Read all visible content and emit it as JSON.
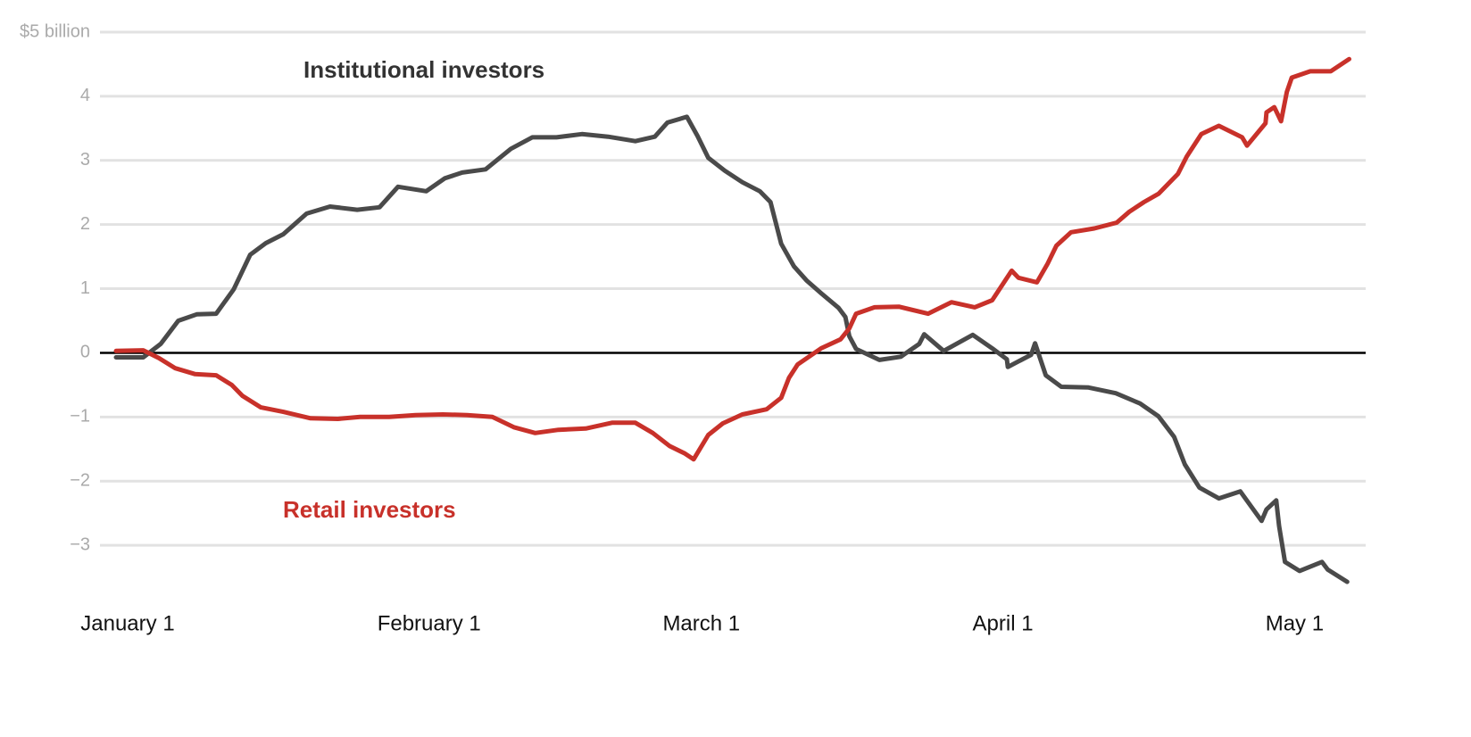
{
  "chart_data": {
    "type": "line",
    "xlim": [
      -1.65,
      128.5
    ],
    "xticks": [
      {
        "value": 0,
        "label": "January 1"
      },
      {
        "value": 31,
        "label": "February 1"
      },
      {
        "value": 59,
        "label": "March 1"
      },
      {
        "value": 90,
        "label": "April 1"
      },
      {
        "value": 120,
        "label": "May 1"
      }
    ],
    "ylim": [
      -4,
      5
    ],
    "yticks": [
      {
        "value": 5,
        "label": "$5 billion"
      },
      4,
      3,
      2,
      1,
      0,
      {
        "value": -1,
        "label": "−1"
      },
      {
        "value": -2,
        "label": "−2"
      },
      {
        "value": -3,
        "label": "−3"
      }
    ],
    "grid": true,
    "series": [
      {
        "name": "Institutional investors",
        "color": "#4a4a4a",
        "x": [
          0,
          2.8,
          4.6,
          6.4,
          8.3,
          10.3,
          12.1,
          13.8,
          15.4,
          17.2,
          19.6,
          22.0,
          24.8,
          27.1,
          29.0,
          31.9,
          33.8,
          35.6,
          38.0,
          40.6,
          42.8,
          45.3,
          47.9,
          50.6,
          53.4,
          55.4,
          56.7,
          58.7,
          59.8,
          60.9,
          62.6,
          64.4,
          66.2,
          67.3,
          68.4,
          69.7,
          71.0,
          72.5,
          74.3,
          75.0,
          75.4,
          76.1,
          78.5,
          80.7,
          82.6,
          83.1,
          85.1,
          88.1,
          90.1,
          91.6,
          91.7,
          94.1,
          94.5,
          95.6,
          97.2,
          100.0,
          102.8,
          105.3,
          107.2,
          108.8,
          109.9,
          111.4,
          113.4,
          115.6,
          117.8,
          118.3,
          119.3,
          119.6,
          120.2,
          121.7,
          124.0,
          124.6,
          126.6
        ],
        "values": [
          -0.07,
          -0.07,
          0.14,
          0.5,
          0.6,
          0.61,
          0.99,
          1.53,
          1.71,
          1.85,
          2.17,
          2.28,
          2.23,
          2.27,
          2.59,
          2.52,
          2.72,
          2.81,
          2.86,
          3.18,
          3.36,
          3.36,
          3.41,
          3.37,
          3.3,
          3.37,
          3.59,
          3.68,
          3.38,
          3.04,
          2.84,
          2.66,
          2.52,
          2.35,
          1.7,
          1.35,
          1.13,
          0.93,
          0.7,
          0.56,
          0.26,
          0.06,
          -0.11,
          -0.06,
          0.14,
          0.29,
          0.03,
          0.28,
          0.07,
          -0.1,
          -0.22,
          -0.03,
          0.15,
          -0.35,
          -0.53,
          -0.54,
          -0.63,
          -0.79,
          -0.99,
          -1.31,
          -1.74,
          -2.1,
          -2.27,
          -2.16,
          -2.62,
          -2.44,
          -2.3,
          -2.7,
          -3.26,
          -3.4,
          -3.26,
          -3.38,
          -3.57
        ]
      },
      {
        "name": "Retail investors",
        "color": "#c8312a",
        "x": [
          0,
          2.8,
          4.4,
          6.1,
          8.1,
          10.3,
          11.9,
          13.0,
          14.9,
          17.2,
          20.0,
          22.8,
          25.1,
          28.1,
          30.8,
          33.6,
          36.1,
          38.7,
          40.9,
          43.1,
          45.5,
          48.3,
          51.0,
          53.4,
          55.2,
          56.9,
          58.5,
          59.4,
          60.9,
          62.4,
          64.4,
          66.9,
          68.4,
          69.2,
          70.1,
          72.5,
          74.5,
          75.4,
          76.1,
          78.0,
          80.5,
          83.5,
          85.9,
          88.3,
          90.1,
          92.1,
          92.8,
          94.7,
          95.8,
          96.7,
          98.2,
          100.6,
          102.9,
          104.2,
          105.7,
          107.2,
          109.2,
          110.1,
          111.6,
          113.4,
          115.8,
          116.3,
          118.2,
          118.3,
          119.1,
          119.8,
          120.4,
          120.9,
          122.8,
          124.9,
          126.8
        ],
        "values": [
          0.03,
          0.04,
          -0.08,
          -0.24,
          -0.33,
          -0.35,
          -0.5,
          -0.67,
          -0.85,
          -0.92,
          -1.02,
          -1.03,
          -1.0,
          -1.0,
          -0.97,
          -0.96,
          -0.97,
          -1.0,
          -1.16,
          -1.25,
          -1.2,
          -1.18,
          -1.09,
          -1.09,
          -1.25,
          -1.45,
          -1.57,
          -1.66,
          -1.28,
          -1.1,
          -0.96,
          -0.88,
          -0.7,
          -0.39,
          -0.18,
          0.07,
          0.21,
          0.38,
          0.61,
          0.71,
          0.72,
          0.61,
          0.79,
          0.71,
          0.82,
          1.28,
          1.17,
          1.1,
          1.39,
          1.67,
          1.88,
          1.94,
          2.03,
          2.2,
          2.35,
          2.48,
          2.79,
          3.06,
          3.41,
          3.54,
          3.36,
          3.23,
          3.58,
          3.75,
          3.83,
          3.61,
          4.07,
          4.29,
          4.39,
          4.39,
          4.58
        ]
      }
    ]
  }
}
